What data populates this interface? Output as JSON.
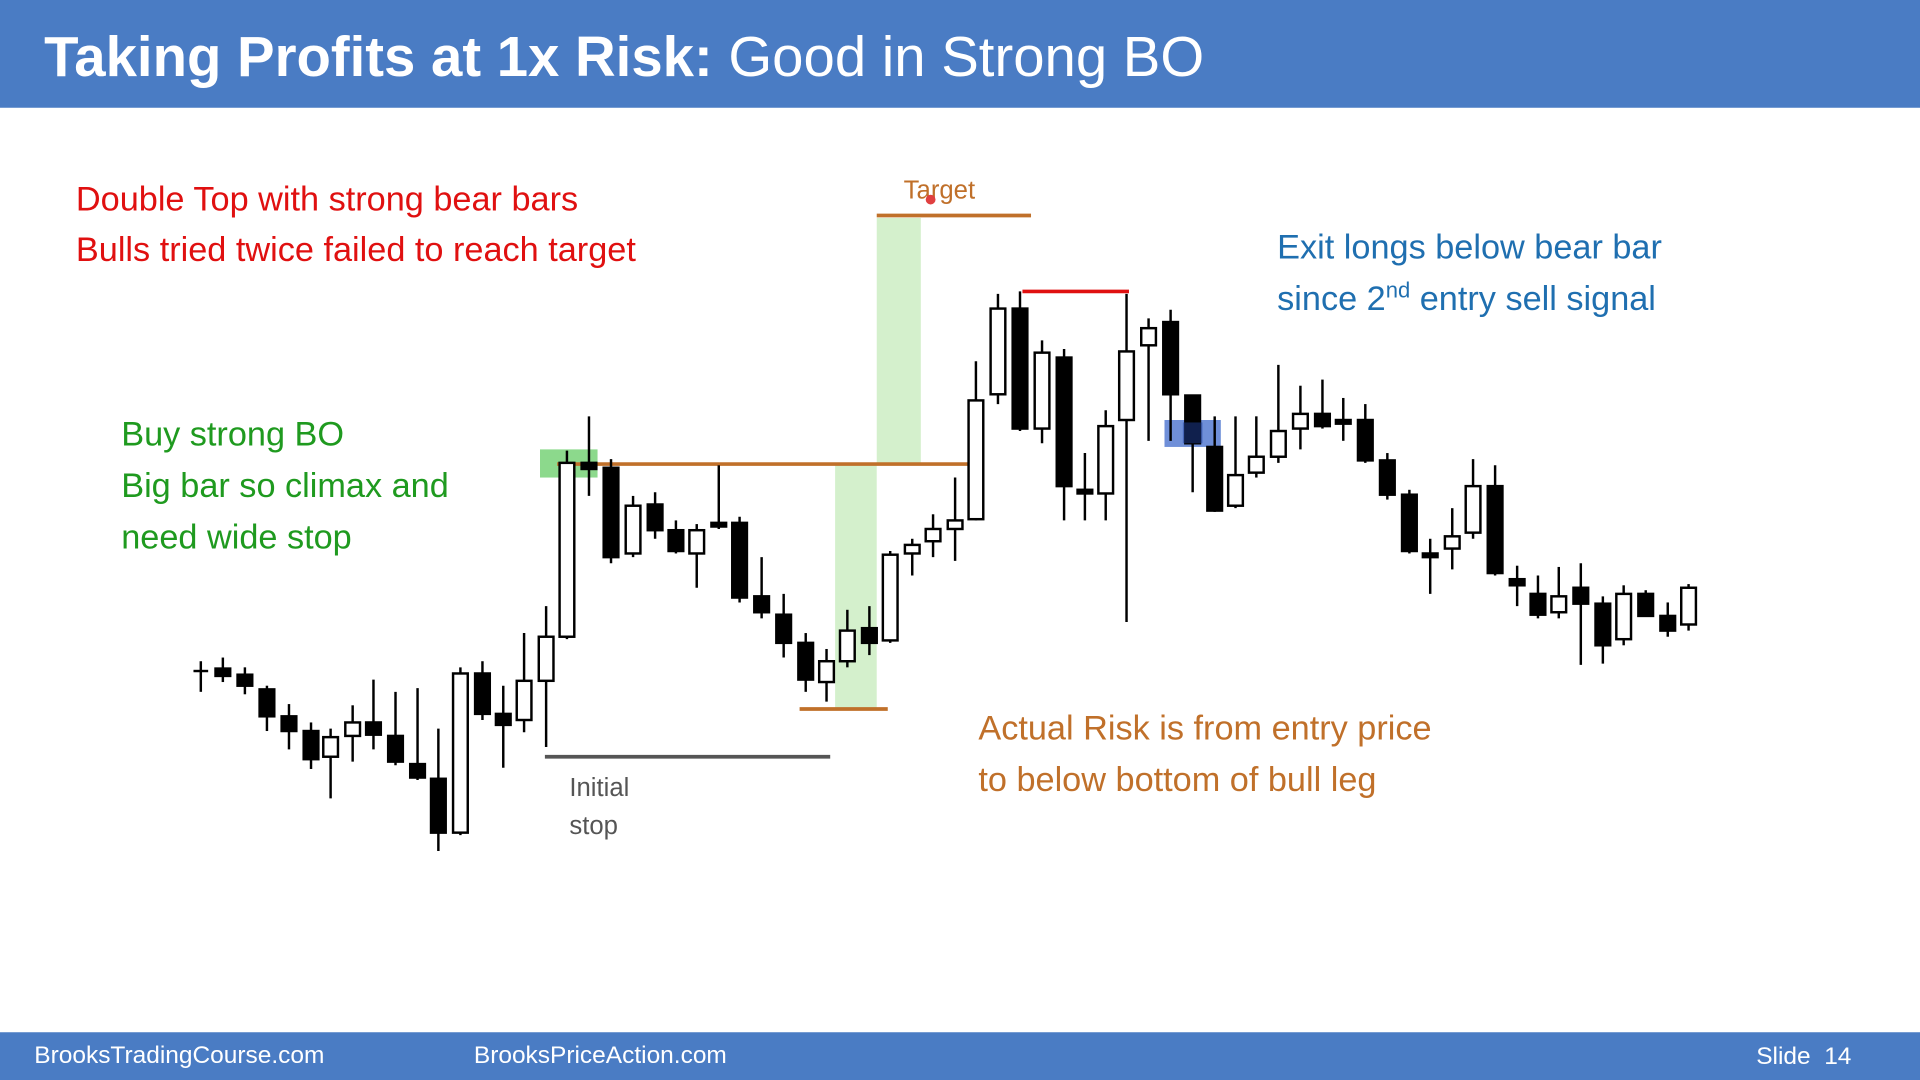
{
  "header": {
    "title_bold": "Taking Profits at 1x Risk:",
    "title_rest": "Good in Strong BO"
  },
  "annotations": {
    "double_top": [
      "Double Top with strong bear bars",
      "Bulls tried twice failed to reach target"
    ],
    "target": "Target",
    "exit": {
      "line1": "Exit longs below bear bar",
      "line2_start": "since 2",
      "line2_sup": "nd",
      "line2_end": " entry sell signal"
    },
    "buy": [
      "Buy strong BO",
      "Big bar so climax and",
      "need wide stop"
    ],
    "risk": [
      "Actual Risk is from entry price",
      "to below bottom of bull leg"
    ],
    "stop": [
      "Initial",
      "stop"
    ]
  },
  "footer": {
    "left": "BrooksTradingCourse.com",
    "middle": "BrooksPriceAction.com",
    "slide": "Slide  14"
  }
}
